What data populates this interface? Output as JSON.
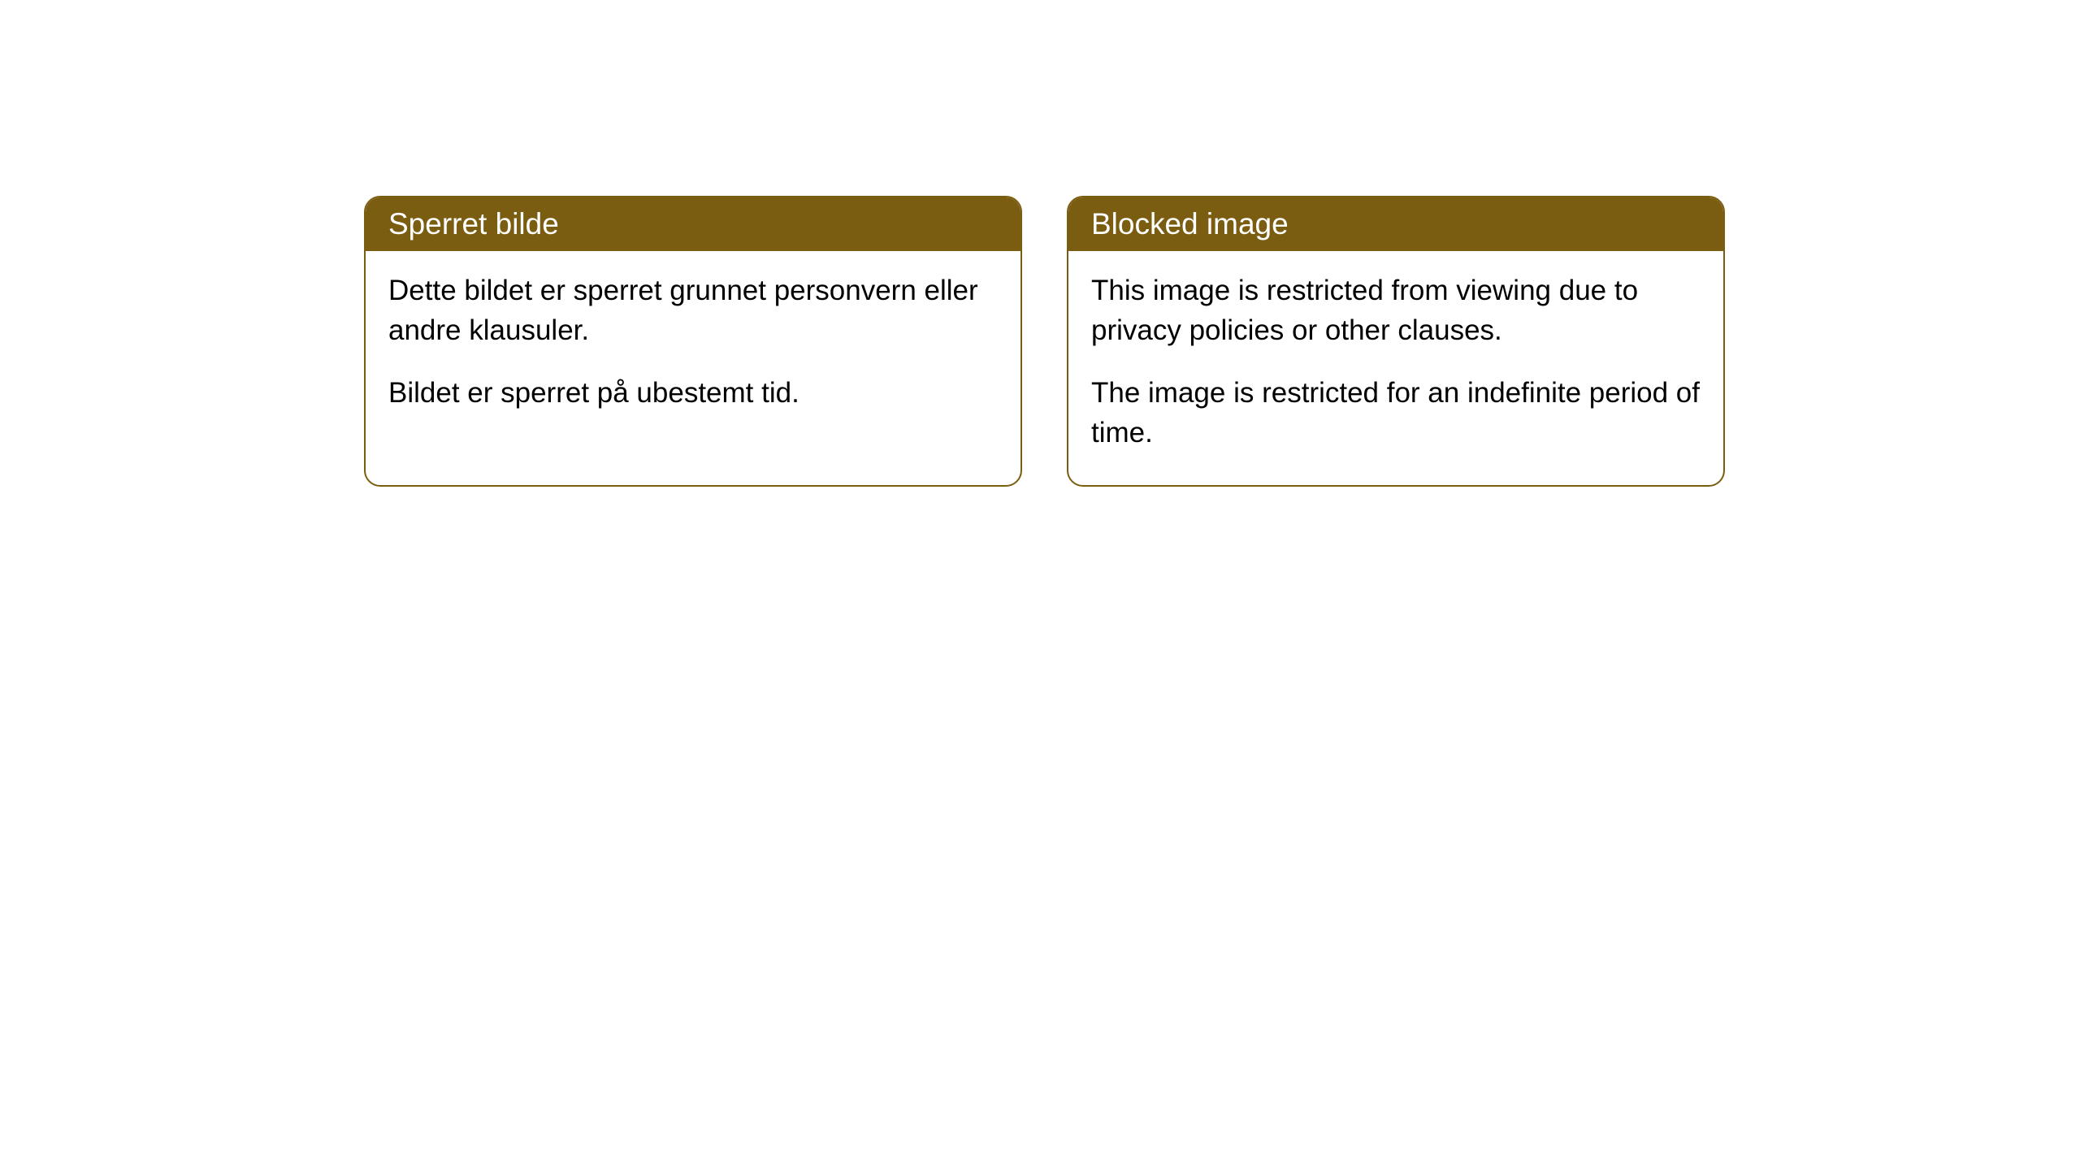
{
  "cards": [
    {
      "title": "Sperret bilde",
      "paragraph1": "Dette bildet er sperret grunnet personvern eller andre klausuler.",
      "paragraph2": "Bildet er sperret på ubestemt tid."
    },
    {
      "title": "Blocked image",
      "paragraph1": "This image is restricted from viewing due to privacy policies or other clauses.",
      "paragraph2": "The image is restricted for an indefinite period of time."
    }
  ],
  "styling": {
    "header_background": "#7a5d10",
    "header_text_color": "#ffffff",
    "card_border_color": "#7a5d10",
    "card_background": "#ffffff",
    "body_text_color": "#000000",
    "border_radius": 20,
    "title_fontsize": 37,
    "body_fontsize": 35
  }
}
